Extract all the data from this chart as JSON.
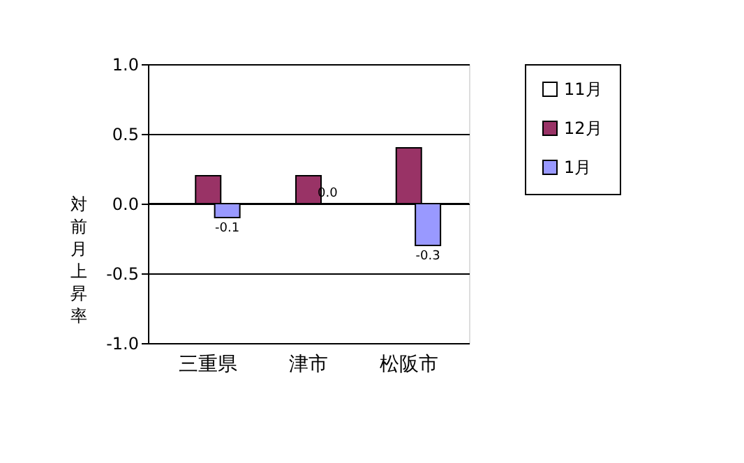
{
  "chart_data": {
    "type": "bar",
    "ylabel": "対前月上昇率",
    "categories": [
      "三重県",
      "津市",
      "松阪市"
    ],
    "series": [
      {
        "name": "11月",
        "color": "#ffffff",
        "values": [
          null,
          null,
          null
        ]
      },
      {
        "name": "12月",
        "color": "#993366",
        "values": [
          0.2,
          0.2,
          0.4
        ]
      },
      {
        "name": "1月",
        "color": "#9999ff",
        "values": [
          -0.1,
          0.0,
          -0.3
        ],
        "value_labels": [
          "-0.1",
          "0.0",
          "-0.3"
        ]
      }
    ],
    "ylim": [
      -1.0,
      1.0
    ],
    "yticks": [
      {
        "value": -1.0,
        "label": "-1.0"
      },
      {
        "value": -0.5,
        "label": "-0.5"
      },
      {
        "value": 0,
        "label": "0.0"
      },
      {
        "value": 0.5,
        "label": "0.5"
      },
      {
        "value": 1.0,
        "label": "1.0"
      }
    ],
    "grid": "y",
    "legend": "right"
  }
}
